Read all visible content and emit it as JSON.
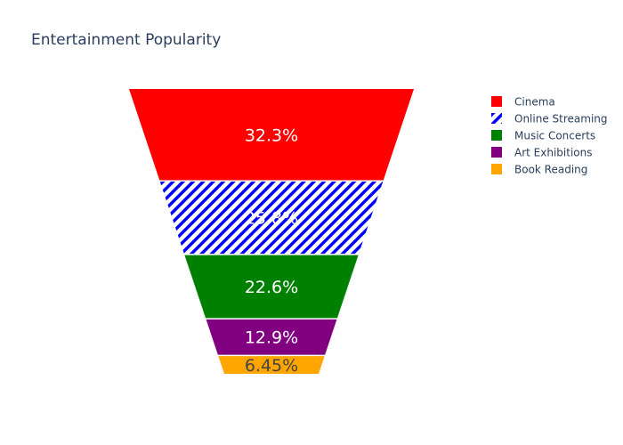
{
  "chart_data": {
    "type": "funnelarea",
    "title": "Entertainment Popularity",
    "categories": [
      "Cinema",
      "Online Streaming",
      "Music Concerts",
      "Art Exhibitions",
      "Book Reading"
    ],
    "values": [
      32.3,
      25.8,
      22.6,
      12.9,
      6.45
    ],
    "labels": [
      "32.3%",
      "25.8%",
      "22.6%",
      "12.9%",
      "6.45%"
    ],
    "colors": [
      "#ff0000",
      "#0000ff",
      "#008000",
      "#800080",
      "#ffa500"
    ],
    "patterns": [
      "none",
      "diagonal-hatch",
      "none",
      "none",
      "none"
    ],
    "label_colors": [
      "#ffffff",
      "#ffffff",
      "#ffffff",
      "#ffffff",
      "#444444"
    ],
    "legend_position": "top-right"
  }
}
